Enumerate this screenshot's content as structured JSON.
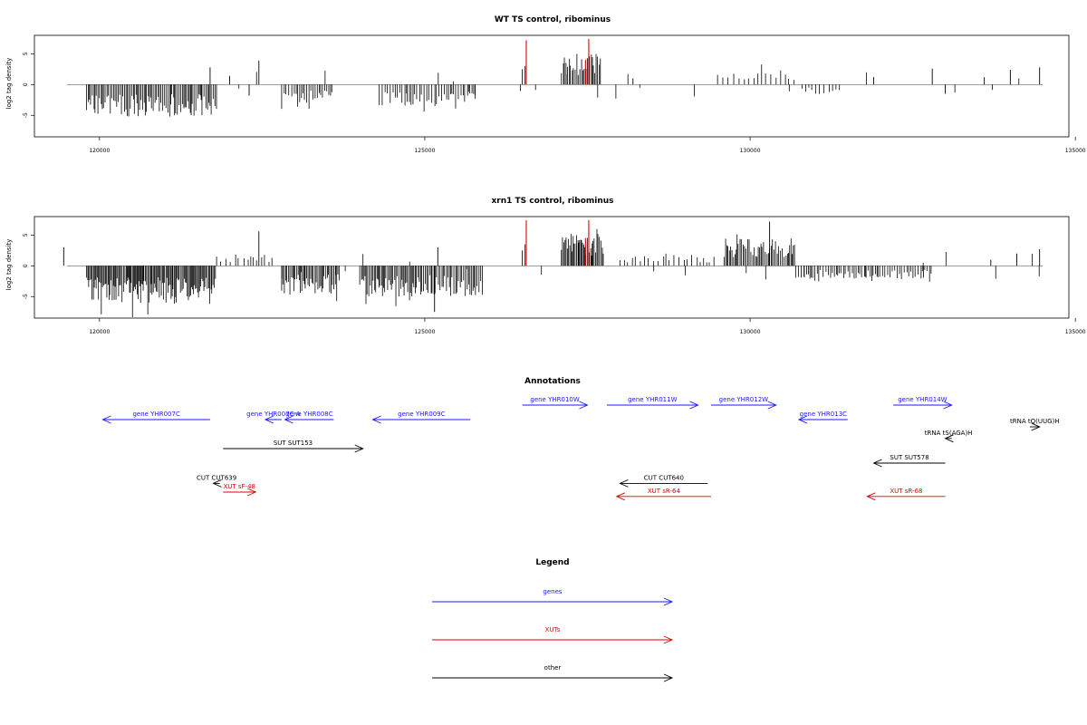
{
  "chart_data": [
    {
      "type": "bar",
      "title": "WT TS control, ribominus",
      "ylabel": "log2 tag density",
      "xlim": [
        119000,
        134900
      ],
      "ylim": [
        -8.5,
        8
      ],
      "x_ticks": [
        120000,
        125000,
        130000,
        135000
      ],
      "y_ticks": [
        -5,
        0,
        5
      ],
      "y_tick_labels": [
        "-5",
        "0",
        "5"
      ],
      "highlight_color": "#e00000",
      "bar_color": "#000000",
      "series": [
        {
          "region": [
            119800,
            121800
          ],
          "sign": -1,
          "amp": 5.2,
          "density": 3
        },
        {
          "region": [
            122800,
            123600
          ],
          "sign": -1,
          "amp": 3.0,
          "density": 2
        },
        {
          "region": [
            124300,
            125800
          ],
          "sign": -1,
          "amp": 3.5,
          "density": 2
        },
        {
          "region": [
            127100,
            127700
          ],
          "sign": 1,
          "amp": 5.0,
          "density": 3
        },
        {
          "region": [
            129500,
            130700
          ],
          "sign": 1,
          "amp": 2.5,
          "density": 1
        },
        {
          "region": [
            130800,
            131400
          ],
          "sign": -1,
          "amp": 1.6,
          "density": 1
        }
      ],
      "spikes": [
        {
          "x": 121700,
          "y": 2.8
        },
        {
          "x": 122000,
          "y": 1.4
        },
        {
          "x": 122450,
          "y": 3.9
        },
        {
          "x": 122300,
          "y": -1.8
        },
        {
          "x": 126500,
          "y": 2.5
        },
        {
          "x": 128200,
          "y": 1.0
        },
        {
          "x": 131900,
          "y": 1.2
        },
        {
          "x": 132800,
          "y": 2.6
        },
        {
          "x": 133600,
          "y": 1.2
        },
        {
          "x": 134000,
          "y": 2.4
        },
        {
          "x": 134450,
          "y": 2.8
        },
        {
          "x": 133000,
          "y": -1.5
        }
      ],
      "red_spikes": [
        {
          "x": 126560,
          "y": 7.2
        },
        {
          "x": 126540,
          "y": 3.0
        },
        {
          "x": 127520,
          "y": 7.4
        },
        {
          "x": 127470,
          "y": 4.0
        }
      ]
    },
    {
      "type": "bar",
      "title": "xrn1 TS control, ribominus",
      "ylabel": "log2 tag density",
      "xlim": [
        119000,
        134900
      ],
      "ylim": [
        -8.5,
        8
      ],
      "x_ticks": [
        120000,
        125000,
        130000,
        135000
      ],
      "y_ticks": [
        -5,
        0,
        5
      ],
      "y_tick_labels": [
        "-5",
        "0",
        "5"
      ],
      "highlight_color": "#e00000",
      "bar_color": "#000000",
      "series": [
        {
          "region": [
            119800,
            121800
          ],
          "sign": -1,
          "amp": 6.2,
          "density": 4
        },
        {
          "region": [
            122800,
            123700
          ],
          "sign": -1,
          "amp": 4.5,
          "density": 3
        },
        {
          "region": [
            124000,
            125900
          ],
          "sign": -1,
          "amp": 5.0,
          "density": 3
        },
        {
          "region": [
            127100,
            127750
          ],
          "sign": 1,
          "amp": 5.2,
          "density": 4
        },
        {
          "region": [
            129600,
            130700
          ],
          "sign": 1,
          "amp": 4.5,
          "density": 3
        },
        {
          "region": [
            130700,
            132800
          ],
          "sign": -1,
          "amp": 2.2,
          "density": 2
        },
        {
          "region": [
            121800,
            122700
          ],
          "sign": 1,
          "amp": 2.0,
          "density": 1
        },
        {
          "region": [
            128000,
            129500
          ],
          "sign": 1,
          "amp": 1.8,
          "density": 1
        }
      ],
      "spikes": [
        {
          "x": 119450,
          "y": 3.0
        },
        {
          "x": 122450,
          "y": 5.6
        },
        {
          "x": 125200,
          "y": 3.0
        },
        {
          "x": 125150,
          "y": -7.5
        },
        {
          "x": 126500,
          "y": 2.5
        },
        {
          "x": 130300,
          "y": 7.2
        },
        {
          "x": 134100,
          "y": 2.0
        },
        {
          "x": 134450,
          "y": 2.7
        },
        {
          "x": 133700,
          "y": 1.0
        }
      ],
      "red_spikes": [
        {
          "x": 126560,
          "y": 7.4
        },
        {
          "x": 126540,
          "y": 3.5
        },
        {
          "x": 127520,
          "y": 7.4
        },
        {
          "x": 127470,
          "y": 4.5
        }
      ]
    },
    {
      "type": "table",
      "title": "Annotations",
      "xlim": [
        119000,
        134900
      ],
      "colors": {
        "genes": "#1a1aff",
        "XUTs": "#e00000",
        "other": "#000000"
      },
      "features": [
        {
          "label": "gene YHR007C",
          "start": 121700,
          "end": 120050,
          "row": 0,
          "kind": "genes"
        },
        {
          "label": "gene YHR007C-A",
          "start": 122800,
          "end": 122550,
          "row": 0,
          "kind": "genes"
        },
        {
          "label": "gene YHR008C",
          "start": 123600,
          "end": 122850,
          "row": 0,
          "kind": "genes"
        },
        {
          "label": "gene YHR009C",
          "start": 125700,
          "end": 124200,
          "row": 0,
          "kind": "genes"
        },
        {
          "label": "gene YHR010W",
          "start": 126500,
          "end": 127500,
          "row": -1,
          "kind": "genes"
        },
        {
          "label": "gene YHR011W",
          "start": 127800,
          "end": 129200,
          "row": -1,
          "kind": "genes"
        },
        {
          "label": "gene YHR012W",
          "start": 129400,
          "end": 130400,
          "row": -1,
          "kind": "genes"
        },
        {
          "label": "gene YHR013C",
          "start": 131500,
          "end": 130750,
          "row": 0,
          "kind": "genes"
        },
        {
          "label": "gene YHR014W",
          "start": 132200,
          "end": 133100,
          "row": -1,
          "kind": "genes"
        },
        {
          "label": "SUT SUT153",
          "start": 121900,
          "end": 124050,
          "row": 2,
          "kind": "other"
        },
        {
          "label": "tRNA tS(AGA)H",
          "start": 133100,
          "end": 133000,
          "row": 1.3,
          "kind": "other"
        },
        {
          "label": "tRNA tQ(UUG)H",
          "start": 134300,
          "end": 134450,
          "row": 0.5,
          "kind": "other"
        },
        {
          "label": "SUT SUT578",
          "start": 133000,
          "end": 131900,
          "row": 3,
          "kind": "other"
        },
        {
          "label": "CUT CUT639",
          "start": 121850,
          "end": 121750,
          "row": 4.4,
          "kind": "other"
        },
        {
          "label": "XUT sF-48",
          "start": 121900,
          "end": 122400,
          "row": 5.0,
          "kind": "XUTs"
        },
        {
          "label": "CUT CUT640",
          "start": 129350,
          "end": 128000,
          "row": 4.4,
          "kind": "other"
        },
        {
          "label": "XUT sR-64",
          "start": 129400,
          "end": 127950,
          "row": 5.3,
          "kind": "XUTs"
        },
        {
          "label": "XUT sR-68",
          "start": 133000,
          "end": 131800,
          "row": 5.3,
          "kind": "XUTs"
        }
      ]
    },
    {
      "type": "table",
      "title": "Legend",
      "items": [
        {
          "label": "genes",
          "kind": "genes"
        },
        {
          "label": "XUTs",
          "kind": "XUTs"
        },
        {
          "label": "other",
          "kind": "other"
        }
      ]
    }
  ]
}
